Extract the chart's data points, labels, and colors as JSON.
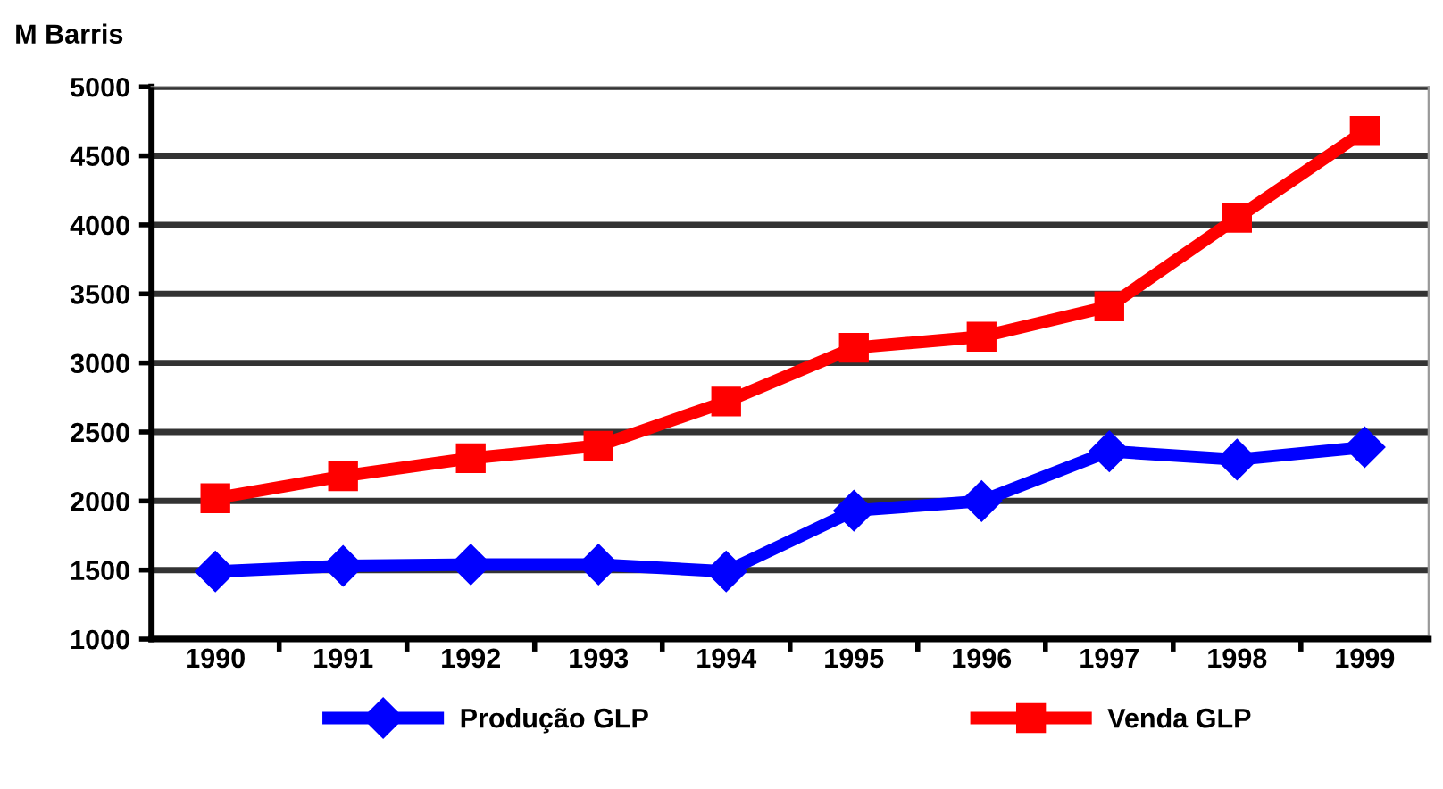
{
  "chart_data": {
    "type": "line",
    "ylabel": "M Barris",
    "categories": [
      "1990",
      "1991",
      "1992",
      "1993",
      "1994",
      "1995",
      "1996",
      "1997",
      "1998",
      "1999"
    ],
    "series": [
      {
        "name": "Produção GLP",
        "color": "#0000ff",
        "marker": "diamond",
        "values": [
          1490,
          1530,
          1540,
          1540,
          1490,
          1930,
          2000,
          2360,
          2300,
          2390
        ]
      },
      {
        "name": "Venda GLP",
        "color": "#ff0000",
        "marker": "square",
        "values": [
          2020,
          2180,
          2310,
          2400,
          2720,
          3110,
          3190,
          3410,
          4050,
          4680
        ]
      }
    ],
    "ylim": [
      1000,
      5000
    ],
    "yticks": [
      1000,
      1500,
      2000,
      2500,
      3000,
      3500,
      4000,
      4500,
      5000
    ],
    "grid": "y",
    "legend": "bottom",
    "line_style": "solid"
  }
}
